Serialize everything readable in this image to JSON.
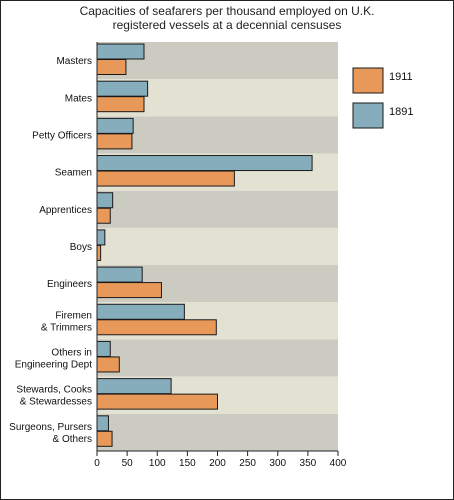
{
  "chart_data": {
    "type": "bar",
    "orientation": "horizontal",
    "title": [
      "Capacities of seafarers per thousand employed on U.K.",
      "registered vessels at a decennial censuses"
    ],
    "categories": [
      [
        "Masters"
      ],
      [
        "Mates"
      ],
      [
        "Petty Officers"
      ],
      [
        "Seamen"
      ],
      [
        "Apprentices"
      ],
      [
        "Boys"
      ],
      [
        "Engineers"
      ],
      [
        "Firemen",
        "& Trimmers"
      ],
      [
        "Others in",
        "Engineering Dept"
      ],
      [
        "Stewards, Cooks",
        "& Stewardesses"
      ],
      [
        "Surgeons, Pursers",
        "& Others"
      ]
    ],
    "series": [
      {
        "name": "1891",
        "color": "#86adbb",
        "values": [
          78,
          84,
          60,
          357,
          26,
          13,
          75,
          145,
          22,
          123,
          19
        ]
      },
      {
        "name": "1911",
        "color": "#e8995a",
        "values": [
          48,
          78,
          58,
          228,
          22,
          6,
          107,
          198,
          37,
          200,
          25
        ]
      }
    ],
    "xlim": [
      0,
      400
    ],
    "xticks": [
      0,
      50,
      100,
      150,
      200,
      250,
      300,
      350,
      400
    ],
    "legend": {
      "position": "right",
      "entries": [
        "1911",
        "1891"
      ]
    },
    "band_colors": [
      "#cccbc1",
      "#e3e2d2"
    ]
  }
}
